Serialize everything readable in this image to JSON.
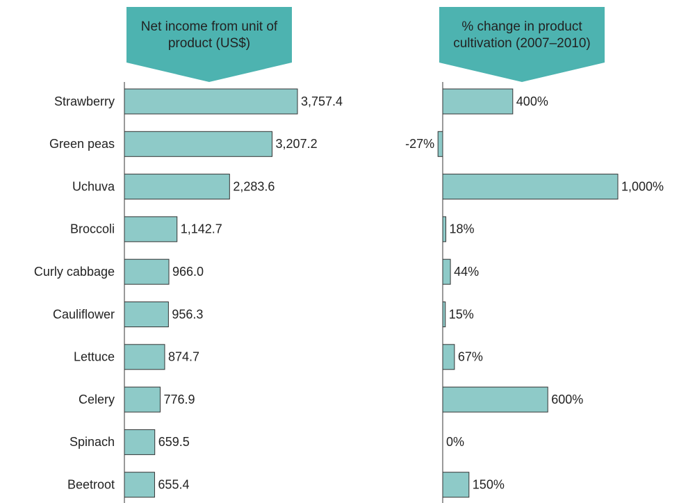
{
  "chart_data": [
    {
      "type": "bar",
      "orientation": "horizontal",
      "title": "Net income from unit of product (US$)",
      "categories": [
        "Strawberry",
        "Green peas",
        "Uchuva",
        "Broccoli",
        "Curly cabbage",
        "Cauliflower",
        "Lettuce",
        "Celery",
        "Spinach",
        "Beetroot"
      ],
      "values": [
        3757.4,
        3207.2,
        2283.6,
        1142.7,
        966.0,
        956.3,
        874.7,
        776.9,
        659.5,
        655.4
      ],
      "value_labels": [
        "3,757.4",
        "3,207.2",
        "2,283.6",
        "1,142.7",
        "966.0",
        "956.3",
        "874.7",
        "776.9",
        "659.5",
        "655.4"
      ],
      "color": "#8ecac8"
    },
    {
      "type": "bar",
      "orientation": "horizontal",
      "title": "% change in product cultivation (2007–2010)",
      "values": [
        400,
        -27,
        1000,
        18,
        44,
        15,
        67,
        600,
        0,
        150
      ],
      "value_labels": [
        "400%",
        "-27%",
        "1,000%",
        "18%",
        "44%",
        "15%",
        "67%",
        "600%",
        "0%",
        "150%"
      ],
      "color": "#8ecac8"
    }
  ]
}
